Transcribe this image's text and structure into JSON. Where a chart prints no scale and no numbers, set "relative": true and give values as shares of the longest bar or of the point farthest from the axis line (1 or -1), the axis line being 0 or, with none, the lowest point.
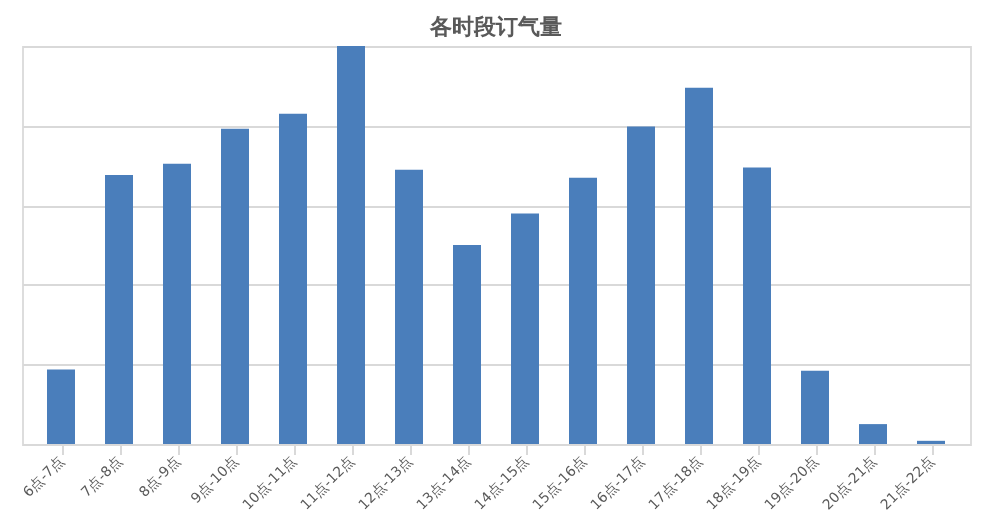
{
  "chart_data": {
    "type": "bar",
    "title": "各时段订气量",
    "categories": [
      "6点-7点",
      "7点-8点",
      "8点-9点",
      "9点-10点",
      "10点-11点",
      "11点-12点",
      "12点-13点",
      "13点-14点",
      "14点-15点",
      "15点-16点",
      "16点-17点",
      "17点-18点",
      "18点-19点",
      "19点-20点",
      "20点-21点",
      "21点-22点"
    ],
    "values": [
      0.187,
      0.676,
      0.704,
      0.792,
      0.83,
      1,
      0.689,
      0.5,
      0.579,
      0.669,
      0.798,
      0.895,
      0.695,
      0.184,
      0.05,
      0.008
    ],
    "color": "#4a7ebb",
    "relative": true,
    "grid": "y"
  }
}
